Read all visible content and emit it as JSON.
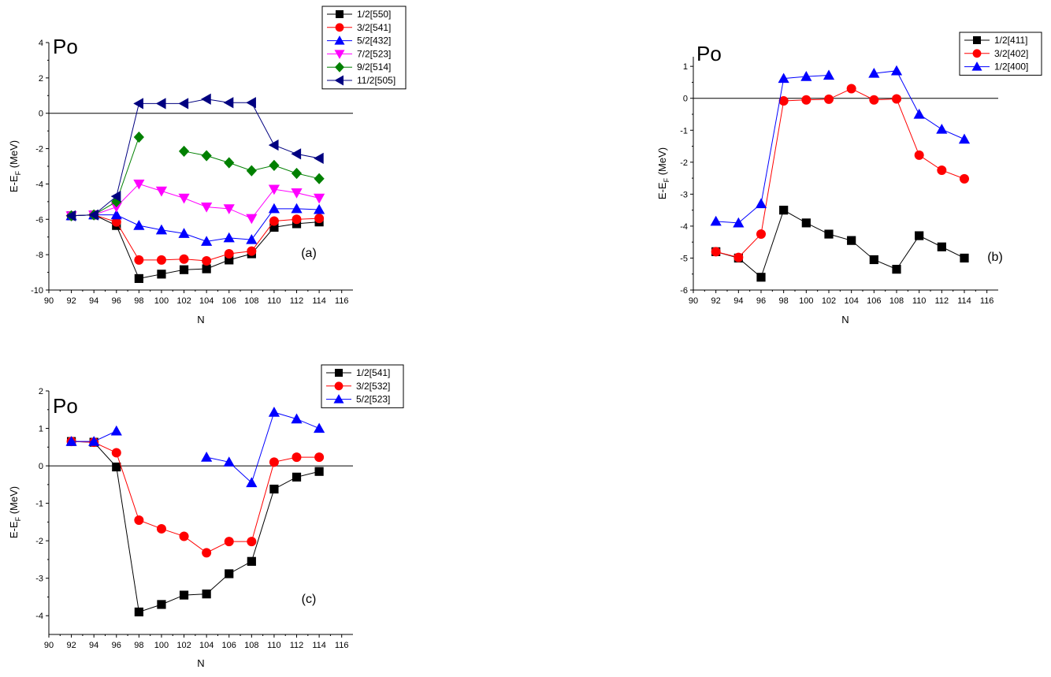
{
  "chart_data": [
    {
      "id": "a",
      "type": "line",
      "nucleus_label": "Po",
      "panel_tag": "(a)",
      "xlabel": "N",
      "ylabel": "E-E",
      "ylabel_sub": "F",
      "ylabel_unit": " (MeV)",
      "xlim": [
        90,
        117
      ],
      "ylim": [
        -10,
        4
      ],
      "xticks": [
        90,
        92,
        94,
        96,
        98,
        100,
        102,
        104,
        106,
        108,
        110,
        112,
        114,
        116
      ],
      "yticks": [
        -10,
        -8,
        -6,
        -4,
        -2,
        0,
        2,
        4
      ],
      "reference_line": 0,
      "legend_position": "top-right",
      "series": [
        {
          "name": "1/2[550]",
          "color": "#000000",
          "marker": "square",
          "segments": [
            [
              [
                92,
                -5.8
              ],
              [
                94,
                -5.75
              ],
              [
                96,
                -6.35
              ],
              [
                98,
                -9.35
              ],
              [
                100,
                -9.1
              ],
              [
                102,
                -8.85
              ],
              [
                104,
                -8.8
              ],
              [
                106,
                -8.3
              ],
              [
                108,
                -7.95
              ],
              [
                110,
                -6.45
              ],
              [
                112,
                -6.25
              ],
              [
                114,
                -6.15
              ]
            ]
          ]
        },
        {
          "name": "3/2[541]",
          "color": "#ff0000",
          "marker": "circle",
          "segments": [
            [
              [
                92,
                -5.8
              ],
              [
                94,
                -5.75
              ],
              [
                96,
                -6.15
              ],
              [
                98,
                -8.3
              ],
              [
                100,
                -8.3
              ],
              [
                102,
                -8.25
              ],
              [
                104,
                -8.35
              ],
              [
                106,
                -7.95
              ],
              [
                108,
                -7.8
              ],
              [
                110,
                -6.1
              ],
              [
                112,
                -6.0
              ],
              [
                114,
                -5.95
              ]
            ]
          ]
        },
        {
          "name": "5/2[432]",
          "color": "#0000ff",
          "marker": "triangle-up",
          "segments": [
            [
              [
                92,
                -5.8
              ],
              [
                94,
                -5.75
              ],
              [
                96,
                -5.75
              ],
              [
                98,
                -6.35
              ],
              [
                100,
                -6.6
              ],
              [
                102,
                -6.8
              ],
              [
                104,
                -7.25
              ],
              [
                106,
                -7.05
              ],
              [
                108,
                -7.15
              ],
              [
                110,
                -5.4
              ],
              [
                112,
                -5.4
              ],
              [
                114,
                -5.45
              ]
            ]
          ]
        },
        {
          "name": "7/2[523]",
          "color": "#ff00ff",
          "marker": "triangle-down",
          "segments": [
            [
              [
                92,
                -5.8
              ],
              [
                94,
                -5.75
              ],
              [
                96,
                -5.3
              ],
              [
                98,
                -4.0
              ],
              [
                100,
                -4.4
              ],
              [
                102,
                -4.8
              ],
              [
                104,
                -5.3
              ],
              [
                106,
                -5.4
              ],
              [
                108,
                -5.95
              ],
              [
                110,
                -4.3
              ],
              [
                112,
                -4.5
              ],
              [
                114,
                -4.8
              ]
            ]
          ]
        },
        {
          "name": "9/2[514]",
          "color": "#008000",
          "marker": "diamond",
          "segments": [
            [
              [
                92,
                -5.8
              ],
              [
                94,
                -5.75
              ],
              [
                96,
                -5.0
              ],
              [
                98,
                -1.35
              ]
            ],
            [
              [
                102,
                -2.15
              ],
              [
                104,
                -2.4
              ],
              [
                106,
                -2.8
              ],
              [
                108,
                -3.25
              ],
              [
                110,
                -2.95
              ],
              [
                112,
                -3.4
              ],
              [
                114,
                -3.7
              ]
            ]
          ]
        },
        {
          "name": "11/2[505]",
          "color": "#000080",
          "marker": "triangle-left",
          "segments": [
            [
              [
                92,
                -5.8
              ],
              [
                94,
                -5.75
              ],
              [
                96,
                -4.7
              ],
              [
                98,
                0.55
              ],
              [
                100,
                0.55
              ],
              [
                102,
                0.55
              ],
              [
                104,
                0.8
              ],
              [
                106,
                0.6
              ],
              [
                108,
                0.6
              ],
              [
                110,
                -1.8
              ],
              [
                112,
                -2.3
              ],
              [
                114,
                -2.55
              ]
            ]
          ]
        }
      ]
    },
    {
      "id": "b",
      "type": "line",
      "nucleus_label": "Po",
      "panel_tag": "(b)",
      "xlabel": "N",
      "ylabel": "E-E",
      "ylabel_sub": "F",
      "ylabel_unit": " (MeV)",
      "xlim": [
        90,
        117
      ],
      "ylim": [
        -6,
        1.3
      ],
      "xticks": [
        90,
        92,
        94,
        96,
        98,
        100,
        102,
        104,
        106,
        108,
        110,
        112,
        114,
        116
      ],
      "yticks": [
        -6,
        -5,
        -4,
        -3,
        -2,
        -1,
        0,
        1
      ],
      "reference_line": 0,
      "legend_position": "top-right",
      "series": [
        {
          "name": "1/2[411]",
          "color": "#000000",
          "marker": "square",
          "segments": [
            [
              [
                92,
                -4.8
              ],
              [
                94,
                -5.0
              ],
              [
                96,
                -5.6
              ],
              [
                98,
                -3.5
              ],
              [
                100,
                -3.9
              ],
              [
                102,
                -4.25
              ],
              [
                104,
                -4.45
              ],
              [
                106,
                -5.05
              ],
              [
                108,
                -5.35
              ],
              [
                110,
                -4.3
              ],
              [
                112,
                -4.65
              ],
              [
                114,
                -5.0
              ]
            ]
          ]
        },
        {
          "name": "3/2[402]",
          "color": "#ff0000",
          "marker": "circle",
          "segments": [
            [
              [
                92,
                -4.8
              ],
              [
                94,
                -4.98
              ],
              [
                96,
                -4.25
              ],
              [
                98,
                -0.08
              ],
              [
                100,
                -0.05
              ],
              [
                102,
                -0.03
              ],
              [
                104,
                0.3
              ],
              [
                106,
                -0.05
              ],
              [
                108,
                -0.02
              ],
              [
                110,
                -1.78
              ],
              [
                112,
                -2.25
              ],
              [
                114,
                -2.52
              ]
            ]
          ]
        },
        {
          "name": "1/2[400]",
          "color": "#0000ff",
          "marker": "triangle-up",
          "segments": [
            [
              [
                92,
                -3.85
              ],
              [
                94,
                -3.9
              ],
              [
                96,
                -3.3
              ],
              [
                98,
                0.62
              ],
              [
                100,
                0.68
              ],
              [
                102,
                0.72
              ]
            ],
            [
              [
                106,
                0.78
              ],
              [
                108,
                0.86
              ],
              [
                110,
                -0.5
              ],
              [
                112,
                -0.97
              ],
              [
                114,
                -1.28
              ]
            ]
          ]
        }
      ]
    },
    {
      "id": "c",
      "type": "line",
      "nucleus_label": "Po",
      "panel_tag": "(c)",
      "xlabel": "N",
      "ylabel": "E-E",
      "ylabel_sub": "F",
      "ylabel_unit": " (MeV)",
      "xlim": [
        90,
        117
      ],
      "ylim": [
        -4.5,
        2
      ],
      "xticks": [
        90,
        92,
        94,
        96,
        98,
        100,
        102,
        104,
        106,
        108,
        110,
        112,
        114,
        116
      ],
      "yticks": [
        -4,
        -3,
        -2,
        -1,
        0,
        1,
        2
      ],
      "reference_line": 0,
      "legend_position": "top-right",
      "series": [
        {
          "name": "1/2[541]",
          "color": "#000000",
          "marker": "square",
          "segments": [
            [
              [
                92,
                0.65
              ],
              [
                94,
                0.63
              ],
              [
                96,
                -0.03
              ],
              [
                98,
                -3.9
              ],
              [
                100,
                -3.7
              ],
              [
                102,
                -3.45
              ],
              [
                104,
                -3.42
              ],
              [
                106,
                -2.88
              ],
              [
                108,
                -2.55
              ],
              [
                110,
                -0.62
              ],
              [
                112,
                -0.3
              ],
              [
                114,
                -0.15
              ]
            ]
          ]
        },
        {
          "name": "3/2[532]",
          "color": "#ff0000",
          "marker": "circle",
          "segments": [
            [
              [
                92,
                0.65
              ],
              [
                94,
                0.63
              ],
              [
                96,
                0.35
              ],
              [
                98,
                -1.45
              ],
              [
                100,
                -1.68
              ],
              [
                102,
                -1.88
              ],
              [
                104,
                -2.32
              ],
              [
                106,
                -2.02
              ],
              [
                108,
                -2.02
              ],
              [
                110,
                0.1
              ],
              [
                112,
                0.23
              ],
              [
                114,
                0.23
              ]
            ]
          ]
        },
        {
          "name": "5/2[523]",
          "color": "#0000ff",
          "marker": "triangle-up",
          "segments": [
            [
              [
                92,
                0.65
              ],
              [
                94,
                0.65
              ],
              [
                96,
                0.93
              ]
            ],
            [
              [
                104,
                0.23
              ],
              [
                106,
                0.1
              ],
              [
                108,
                -0.45
              ],
              [
                110,
                1.43
              ],
              [
                112,
                1.25
              ],
              [
                114,
                1.0
              ]
            ]
          ]
        }
      ]
    }
  ]
}
